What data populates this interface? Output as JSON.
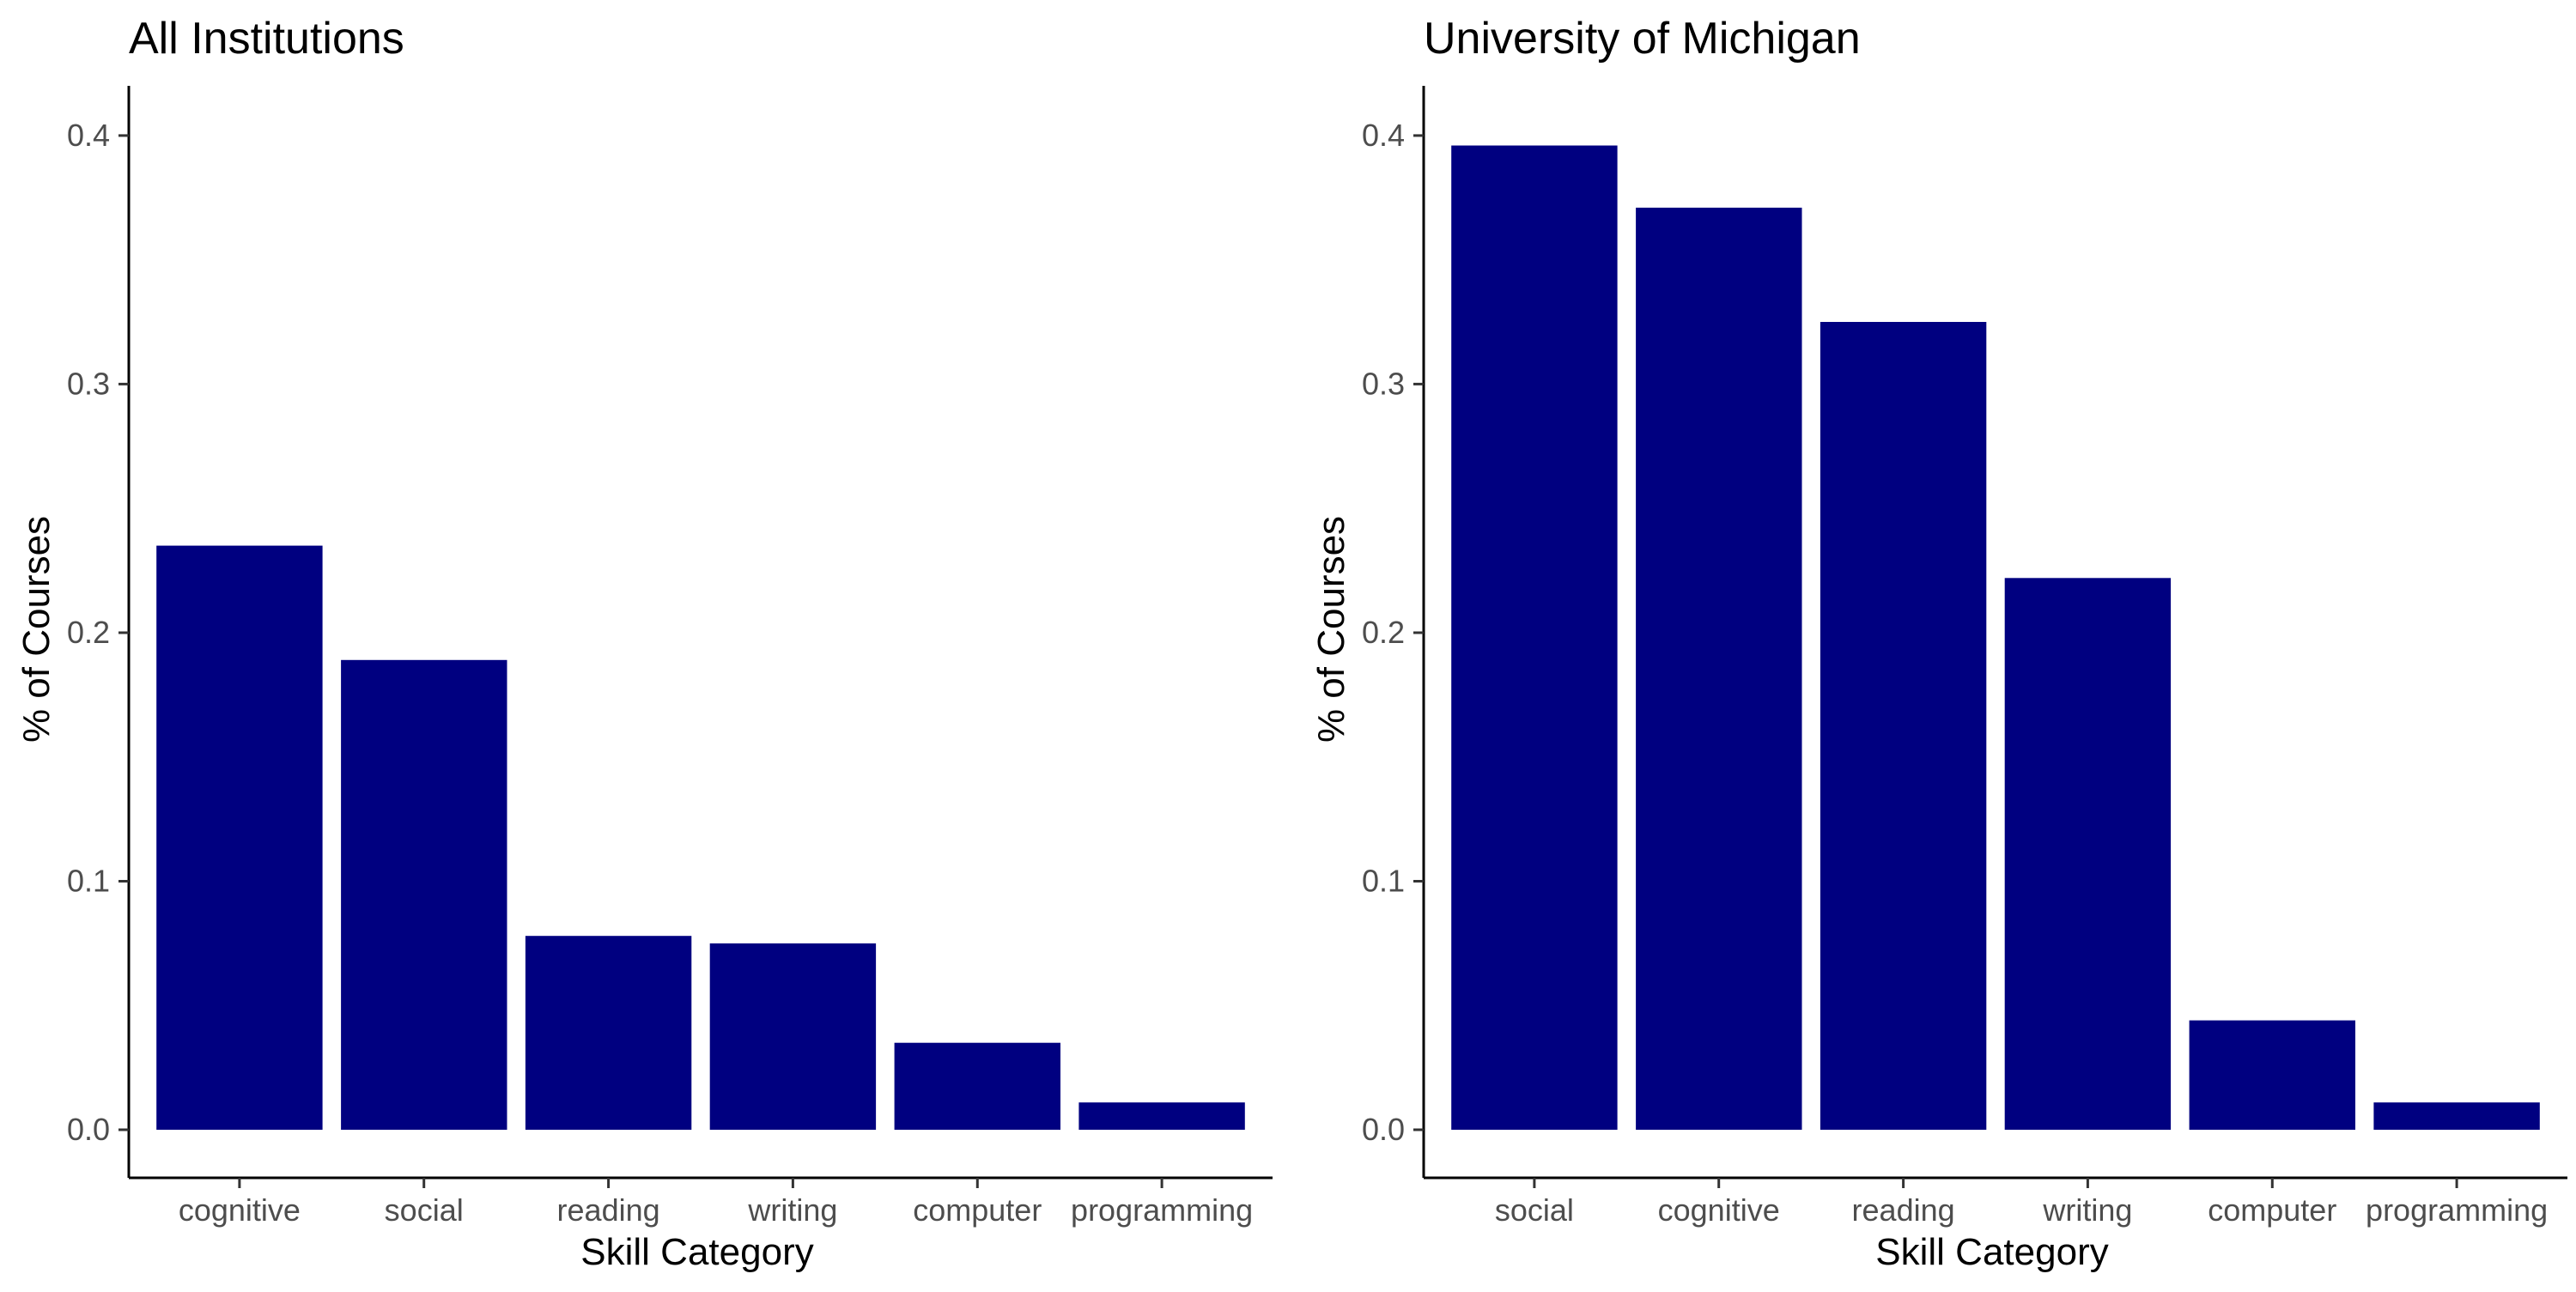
{
  "chart_data": [
    {
      "type": "bar",
      "title": "All Institutions",
      "xlabel": "Skill Category",
      "ylabel": "% of Courses",
      "categories": [
        "cognitive",
        "social",
        "reading",
        "writing",
        "computer",
        "programming"
      ],
      "values": [
        0.235,
        0.189,
        0.078,
        0.075,
        0.035,
        0.011
      ],
      "ylim": [
        0,
        0.42
      ],
      "yticks": [
        0.0,
        0.1,
        0.2,
        0.3,
        0.4
      ],
      "ytick_labels": [
        "0.0",
        "0.1",
        "0.2",
        "0.3",
        "0.4"
      ],
      "bar_color": "#000080",
      "grid": false,
      "legend": "none"
    },
    {
      "type": "bar",
      "title": "University of Michigan",
      "xlabel": "Skill Category",
      "ylabel": "% of Courses",
      "categories": [
        "social",
        "cognitive",
        "reading",
        "writing",
        "computer",
        "programming"
      ],
      "values": [
        0.396,
        0.371,
        0.325,
        0.222,
        0.044,
        0.011
      ],
      "ylim": [
        0,
        0.42
      ],
      "yticks": [
        0.0,
        0.1,
        0.2,
        0.3,
        0.4
      ],
      "ytick_labels": [
        "0.0",
        "0.1",
        "0.2",
        "0.3",
        "0.4"
      ],
      "bar_color": "#000080",
      "grid": false,
      "legend": "none"
    }
  ]
}
